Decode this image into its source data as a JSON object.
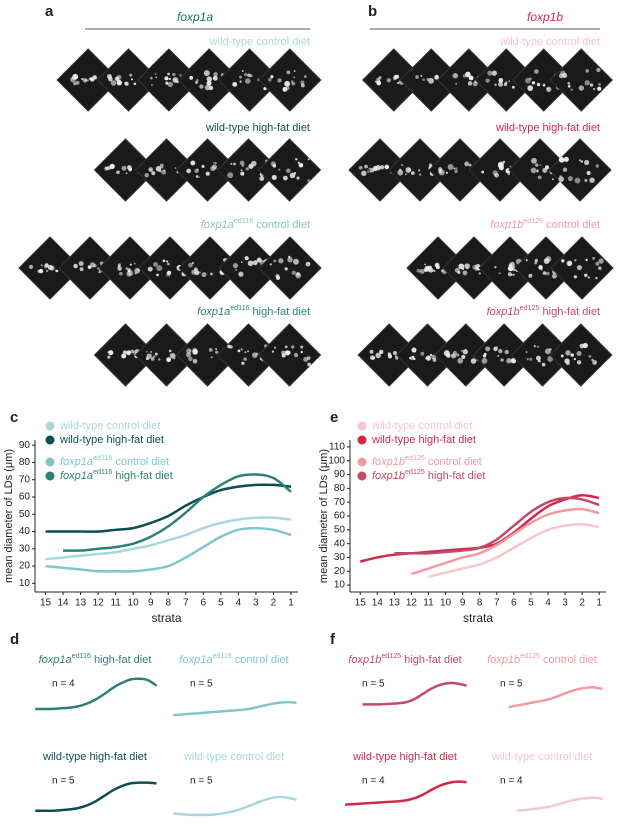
{
  "panel_letters": [
    "a",
    "b",
    "c",
    "d",
    "e",
    "f"
  ],
  "image_panels": [
    {
      "title": "foxp1a",
      "color": "#1f6f6a",
      "rows": [
        {
          "text": "wild-type control diet",
          "color": "#a8d8dc"
        },
        {
          "text": "wild-type high-fat diet",
          "color": "#0d4f4f"
        },
        {
          "gene": "foxp1a",
          "allele": "ed116",
          "text": "control diet",
          "color": "#7fc7c9"
        },
        {
          "gene": "foxp1a",
          "allele": "ed116",
          "text": "high-fat diet",
          "color": "#2e7f76"
        }
      ]
    },
    {
      "title": "foxp1b",
      "color": "#d0284a",
      "rows": [
        {
          "text": "wild-type control diet",
          "color": "#f6c6ce"
        },
        {
          "text": "wild-type high-fat diet",
          "color": "#d0284a"
        },
        {
          "gene": "foxp1b",
          "allele": "ed125",
          "text": "control diet",
          "color": "#f09aa2"
        },
        {
          "gene": "foxp1b",
          "allele": "ed125",
          "text": "high-fat diet",
          "color": "#c3486a"
        }
      ]
    }
  ],
  "chart_data": [
    {
      "type": "line",
      "xlabel": "strata",
      "ylabel": "mean diameter of LDs (μm)",
      "x": [
        15,
        14,
        13,
        12,
        11,
        10,
        9,
        8,
        7,
        6,
        5,
        4,
        3,
        2,
        1
      ],
      "xlim": [
        15.6,
        0.6
      ],
      "xticks": [
        15,
        14,
        13,
        12,
        11,
        10,
        9,
        8,
        7,
        6,
        5,
        4,
        3,
        2,
        1
      ],
      "ylim": [
        5,
        93
      ],
      "yticks": [
        10,
        20,
        30,
        40,
        50,
        60,
        70,
        80,
        90
      ],
      "series": [
        {
          "name": "wild-type control diet",
          "color": "#a8d8dc",
          "values": [
            24,
            25,
            26,
            27,
            28,
            30,
            32,
            35,
            38,
            42,
            45,
            47,
            48,
            48,
            47
          ]
        },
        {
          "name": "wild-type high-fat diet",
          "color": "#0d4f4f",
          "values": [
            40,
            40,
            40,
            40,
            41,
            42,
            45,
            49,
            55,
            60,
            64,
            66,
            67,
            67,
            66
          ]
        },
        {
          "gene": "foxp1a",
          "allele": "ed116",
          "name": "control diet",
          "color": "#7fc7c9",
          "values": [
            20,
            19,
            18,
            17,
            17,
            17,
            18,
            20,
            25,
            31,
            37,
            41,
            42,
            41,
            38
          ]
        },
        {
          "gene": "foxp1a",
          "allele": "ed116",
          "name": "high-fat diet",
          "color": "#2e7f76",
          "values": [
            null,
            29,
            29,
            30,
            31,
            33,
            37,
            43,
            51,
            60,
            67,
            72,
            73,
            71,
            63
          ]
        }
      ]
    },
    {
      "type": "line",
      "xlabel": "strata",
      "ylabel": "mean diameter of LDs (μm)",
      "x": [
        15,
        14,
        13,
        12,
        11,
        10,
        9,
        8,
        7,
        6,
        5,
        4,
        3,
        2,
        1
      ],
      "xlim": [
        15.6,
        0.6
      ],
      "xticks": [
        15,
        14,
        13,
        12,
        11,
        10,
        9,
        8,
        7,
        6,
        5,
        4,
        3,
        2,
        1
      ],
      "ylim": [
        5,
        115
      ],
      "yticks": [
        10,
        20,
        30,
        40,
        50,
        60,
        70,
        80,
        90,
        100,
        110
      ],
      "series": [
        {
          "name": "wild-type control diet",
          "color": "#f6c6ce",
          "values": [
            null,
            null,
            null,
            null,
            16,
            19,
            22,
            25,
            30,
            37,
            44,
            50,
            53,
            54,
            52
          ]
        },
        {
          "name": "wild-type high-fat diet",
          "color": "#d0284a",
          "values": [
            27,
            30,
            32,
            33,
            34,
            35,
            36,
            37,
            40,
            48,
            58,
            67,
            72,
            75,
            73
          ]
        },
        {
          "gene": "foxp1b",
          "allele": "ed125",
          "name": "control diet",
          "color": "#f09aa2",
          "values": [
            null,
            null,
            null,
            18,
            22,
            26,
            30,
            33,
            39,
            47,
            55,
            61,
            64,
            65,
            62
          ]
        },
        {
          "gene": "foxp1b",
          "allele": "ed125",
          "name": "high-fat diet",
          "color": "#c3486a",
          "values": [
            null,
            null,
            33,
            33,
            33,
            34,
            35,
            37,
            43,
            53,
            63,
            70,
            73,
            72,
            68
          ]
        }
      ]
    },
    {
      "type": "mini",
      "title_gene": "foxp1a",
      "title_allele": "ed116",
      "title": "high-fat diet",
      "note": "n = 4",
      "x": [
        15,
        14,
        13,
        12,
        11,
        10,
        9,
        8,
        7,
        6,
        5,
        4,
        3,
        2,
        1
      ],
      "xlim": [
        15.6,
        0.6
      ],
      "ylim": [
        10,
        80
      ],
      "series": [
        {
          "color": "#2e7f76",
          "values": [
            29,
            29,
            29,
            30,
            31,
            33,
            37,
            43,
            51,
            60,
            67,
            72,
            73,
            71,
            63
          ]
        }
      ]
    },
    {
      "type": "mini",
      "title_gene": "foxp1a",
      "title_allele": "ed116",
      "title": "control diet",
      "note": "n = 5",
      "x": [
        15,
        14,
        13,
        12,
        11,
        10,
        9,
        8,
        7,
        6,
        5,
        4,
        3,
        2,
        1
      ],
      "xlim": [
        15.6,
        0.6
      ],
      "ylim": [
        10,
        80
      ],
      "series": [
        {
          "color": "#7fc7c9",
          "values": [
            20,
            21,
            22,
            23,
            24,
            25,
            26,
            27,
            28,
            30,
            33,
            36,
            38,
            39,
            38
          ]
        }
      ]
    },
    {
      "type": "mini",
      "title": "wild-type high-fat diet",
      "note": "n = 5",
      "x": [
        15,
        14,
        13,
        12,
        11,
        10,
        9,
        8,
        7,
        6,
        5,
        4,
        3,
        2,
        1
      ],
      "xlim": [
        15.6,
        0.6
      ],
      "ylim": [
        10,
        80
      ],
      "series": [
        {
          "color": "#0d4f4f",
          "values": [
            22,
            22,
            22,
            23,
            24,
            26,
            30,
            36,
            44,
            52,
            58,
            62,
            63,
            63,
            62
          ]
        }
      ]
    },
    {
      "type": "mini",
      "title": "wild-type control diet",
      "note": "n = 5",
      "x": [
        15,
        14,
        13,
        12,
        11,
        10,
        9,
        8,
        7,
        6,
        5,
        4,
        3,
        2,
        1
      ],
      "xlim": [
        15.6,
        0.6
      ],
      "ylim": [
        10,
        80
      ],
      "series": [
        {
          "color": "#a8d8dc",
          "values": [
            18,
            17,
            16,
            16,
            16,
            17,
            19,
            22,
            26,
            31,
            36,
            40,
            42,
            41,
            38
          ]
        }
      ]
    },
    {
      "type": "mini",
      "title_gene": "foxp1b",
      "title_allele": "ed125",
      "title": "high-fat diet",
      "note": "n = 5",
      "x": [
        15,
        14,
        13,
        12,
        11,
        10,
        9,
        8,
        7,
        6,
        5,
        4,
        3,
        2,
        1
      ],
      "xlim": [
        15.6,
        0.6
      ],
      "ylim": [
        0,
        90
      ],
      "series": [
        {
          "color": "#c3486a",
          "values": [
            null,
            null,
            33,
            33,
            33,
            34,
            35,
            37,
            43,
            53,
            63,
            70,
            73,
            72,
            68
          ]
        }
      ]
    },
    {
      "type": "mini",
      "title_gene": "foxp1b",
      "title_allele": "ed125",
      "title": "control diet",
      "note": "n = 5",
      "x": [
        15,
        14,
        13,
        12,
        11,
        10,
        9,
        8,
        7,
        6,
        5,
        4,
        3,
        2,
        1
      ],
      "xlim": [
        15.6,
        0.6
      ],
      "ylim": [
        0,
        90
      ],
      "series": [
        {
          "color": "#f09aa2",
          "values": [
            null,
            null,
            null,
            28,
            31,
            34,
            37,
            40,
            44,
            50,
            56,
            61,
            64,
            65,
            62
          ]
        }
      ]
    },
    {
      "type": "mini",
      "title": "wild-type high-fat diet",
      "note": "n = 4",
      "x": [
        15,
        14,
        13,
        12,
        11,
        10,
        9,
        8,
        7,
        6,
        5,
        4,
        3,
        2,
        1
      ],
      "xlim": [
        15.6,
        0.6
      ],
      "ylim": [
        0,
        90
      ],
      "series": [
        {
          "color": "#d0284a",
          "values": [
            27,
            28,
            29,
            30,
            31,
            32,
            33,
            35,
            39,
            46,
            55,
            63,
            68,
            70,
            69
          ]
        }
      ]
    },
    {
      "type": "mini",
      "title": "wild-type control diet",
      "note": "n = 4",
      "x": [
        15,
        14,
        13,
        12,
        11,
        10,
        9,
        8,
        7,
        6,
        5,
        4,
        3,
        2,
        1
      ],
      "xlim": [
        15.6,
        0.6
      ],
      "ylim": [
        0,
        90
      ],
      "series": [
        {
          "color": "#f6c6ce",
          "values": [
            null,
            null,
            null,
            null,
            16,
            17,
            19,
            21,
            24,
            28,
            33,
            37,
            39,
            40,
            38
          ]
        }
      ]
    }
  ]
}
